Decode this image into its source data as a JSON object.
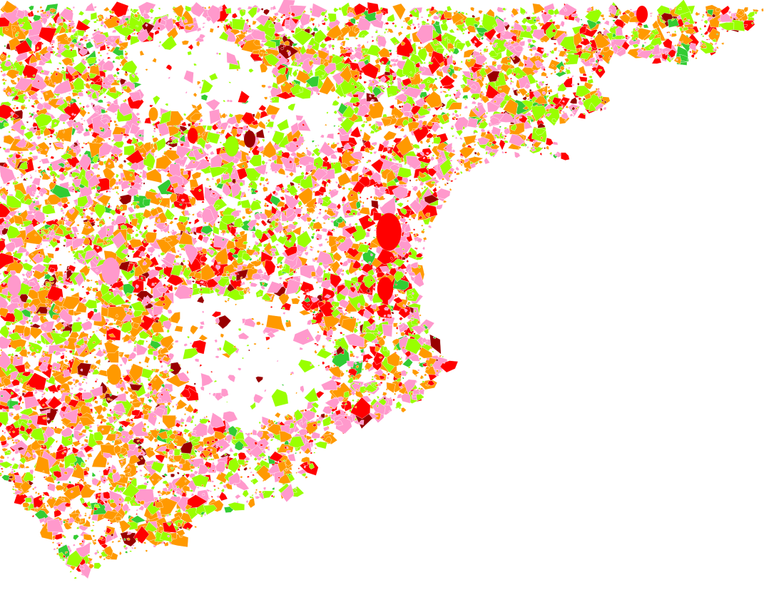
{
  "map": {
    "background": "#ffffff",
    "land_use_colors": [
      {
        "color": "#ff99cc",
        "weight": 0.3
      },
      {
        "color": "#ff9900",
        "weight": 0.27
      },
      {
        "color": "#99ff00",
        "weight": 0.22
      },
      {
        "color": "#ff0000",
        "weight": 0.14
      },
      {
        "color": "#33cc33",
        "weight": 0.04
      },
      {
        "color": "#990000",
        "weight": 0.03
      }
    ]
  }
}
